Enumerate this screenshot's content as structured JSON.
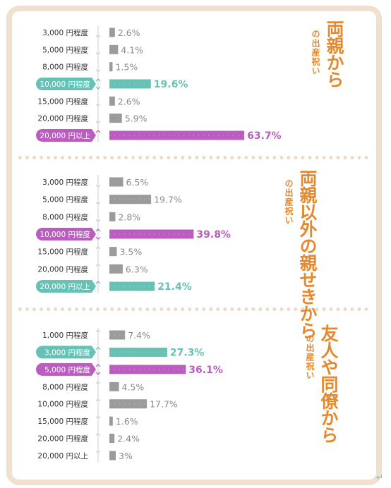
{
  "colors": {
    "gray": "#9b9b9b",
    "teal": "#66c2b4",
    "purple": "#bb5cc0",
    "orange": "#e6892e",
    "axis": "#cfcfcf"
  },
  "chart_data": [
    {
      "type": "bar",
      "title_main": "両親から",
      "title_sub": "の出産祝い",
      "categories": [
        "3,000 円程度",
        "5,000 円程度",
        "8,000 円程度",
        "10,000 円程度",
        "15,000 円程度",
        "20,000 円程度",
        "20,000 円以上"
      ],
      "values": [
        2.6,
        4.1,
        1.5,
        19.6,
        2.6,
        5.9,
        63.7
      ],
      "labels": [
        "2.6%",
        "4.1%",
        "1.5%",
        "19.6%",
        "2.6%",
        "5.9%",
        "63.7%"
      ],
      "highlight": [
        "none",
        "none",
        "none",
        "teal",
        "none",
        "none",
        "purple"
      ],
      "markers": [
        "down",
        "down",
        "down",
        "updown",
        "down",
        "down",
        "up"
      ]
    },
    {
      "type": "bar",
      "title_main": "両親以外の親せきから",
      "title_sub": "の出産祝い",
      "categories": [
        "3,000 円程度",
        "5,000 円程度",
        "8,000 円程度",
        "10,000 円程度",
        "15,000 円程度",
        "20,000 円程度",
        "20,000 円以上"
      ],
      "values": [
        6.5,
        19.7,
        2.8,
        39.8,
        3.5,
        6.3,
        21.4
      ],
      "labels": [
        "6.5%",
        "19.7%",
        "2.8%",
        "39.8%",
        "3.5%",
        "6.3%",
        "21.4%"
      ],
      "highlight": [
        "none",
        "none",
        "none",
        "purple",
        "none",
        "none",
        "teal"
      ],
      "markers": [
        "down",
        "down",
        "down",
        "updown",
        "up",
        "up",
        "up"
      ]
    },
    {
      "type": "bar",
      "title_main": "友人や同僚から",
      "title_sub": "の出産祝い",
      "categories": [
        "1,000 円程度",
        "3,000 円程度",
        "5,000 円程度",
        "8,000 円程度",
        "10,000 円程度",
        "15,000 円程度",
        "20,000 円程度",
        "20,000 円以上"
      ],
      "values": [
        7.4,
        27.3,
        36.1,
        4.5,
        17.7,
        1.6,
        2.4,
        3
      ],
      "labels": [
        "7.4%",
        "27.3%",
        "36.1%",
        "4.5%",
        "17.7%",
        "1.6%",
        "2.4%",
        "3%"
      ],
      "highlight": [
        "none",
        "teal",
        "purple",
        "none",
        "none",
        "none",
        "none",
        "none"
      ],
      "markers": [
        "up",
        "up",
        "updown",
        "up",
        "up",
        "up",
        "up",
        "up"
      ]
    }
  ],
  "return_mark": "↵"
}
